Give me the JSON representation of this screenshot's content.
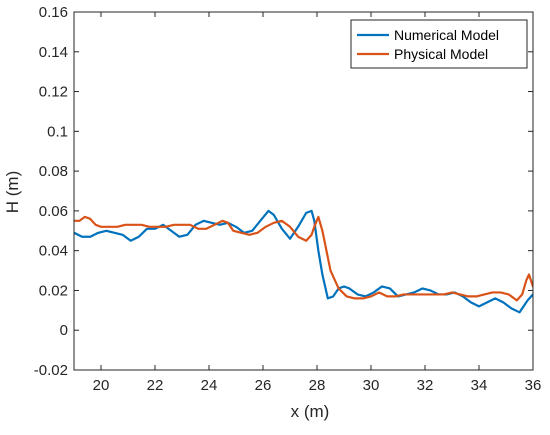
{
  "chart_data": {
    "type": "line",
    "title": "",
    "xlabel": "x (m)",
    "ylabel": "H (m)",
    "xlim": [
      19,
      36
    ],
    "ylim": [
      -0.02,
      0.16
    ],
    "xticks": [
      20,
      22,
      24,
      26,
      28,
      30,
      32,
      34,
      36
    ],
    "yticks": [
      -0.02,
      0,
      0.02,
      0.04,
      0.06,
      0.08,
      0.1,
      0.12,
      0.14,
      0.16
    ],
    "xtick_labels": [
      "20",
      "22",
      "24",
      "26",
      "28",
      "30",
      "32",
      "34",
      "36"
    ],
    "ytick_labels": [
      "-0.02",
      "0",
      "0.02",
      "0.04",
      "0.06",
      "0.08",
      "0.1",
      "0.12",
      "0.14",
      "0.16"
    ],
    "grid": false,
    "legend_position": "top-right",
    "series": [
      {
        "name": "Numerical Model",
        "color": "#0072BD",
        "x": [
          19.0,
          19.3,
          19.6,
          19.9,
          20.2,
          20.5,
          20.8,
          21.1,
          21.4,
          21.7,
          22.0,
          22.3,
          22.6,
          22.9,
          23.2,
          23.5,
          23.8,
          24.1,
          24.4,
          24.7,
          25.0,
          25.3,
          25.6,
          25.9,
          26.2,
          26.4,
          26.7,
          27.0,
          27.3,
          27.6,
          27.8,
          27.9,
          28.05,
          28.2,
          28.4,
          28.6,
          28.8,
          29.0,
          29.2,
          29.5,
          29.8,
          30.1,
          30.4,
          30.7,
          31.0,
          31.3,
          31.6,
          31.9,
          32.2,
          32.5,
          32.8,
          33.1,
          33.4,
          33.7,
          34.0,
          34.3,
          34.6,
          34.9,
          35.2,
          35.5,
          35.8,
          36.0
        ],
        "y": [
          0.049,
          0.047,
          0.047,
          0.049,
          0.05,
          0.049,
          0.048,
          0.045,
          0.047,
          0.051,
          0.051,
          0.053,
          0.05,
          0.047,
          0.048,
          0.053,
          0.055,
          0.054,
          0.053,
          0.054,
          0.052,
          0.049,
          0.05,
          0.055,
          0.06,
          0.058,
          0.051,
          0.046,
          0.052,
          0.059,
          0.06,
          0.055,
          0.04,
          0.028,
          0.016,
          0.017,
          0.021,
          0.022,
          0.021,
          0.018,
          0.017,
          0.019,
          0.022,
          0.021,
          0.017,
          0.018,
          0.019,
          0.021,
          0.02,
          0.018,
          0.018,
          0.019,
          0.017,
          0.014,
          0.012,
          0.014,
          0.016,
          0.014,
          0.011,
          0.009,
          0.015,
          0.018
        ]
      },
      {
        "name": "Physical Model",
        "color": "#D95319",
        "x": [
          19.0,
          19.2,
          19.4,
          19.6,
          19.8,
          20.0,
          20.3,
          20.6,
          20.9,
          21.2,
          21.5,
          21.8,
          22.1,
          22.4,
          22.7,
          23.0,
          23.3,
          23.6,
          23.9,
          24.2,
          24.5,
          24.7,
          24.9,
          25.2,
          25.5,
          25.8,
          26.1,
          26.4,
          26.7,
          27.0,
          27.3,
          27.6,
          27.8,
          27.9,
          28.05,
          28.2,
          28.5,
          28.8,
          29.1,
          29.4,
          29.7,
          30.0,
          30.3,
          30.6,
          30.9,
          31.2,
          31.5,
          31.8,
          32.1,
          32.4,
          32.7,
          33.0,
          33.3,
          33.6,
          33.9,
          34.2,
          34.5,
          34.8,
          35.1,
          35.4,
          35.6,
          35.75,
          35.85,
          36.0
        ],
        "y": [
          0.055,
          0.055,
          0.057,
          0.056,
          0.053,
          0.052,
          0.052,
          0.052,
          0.053,
          0.053,
          0.053,
          0.052,
          0.052,
          0.052,
          0.053,
          0.053,
          0.053,
          0.051,
          0.051,
          0.053,
          0.055,
          0.054,
          0.05,
          0.049,
          0.048,
          0.049,
          0.052,
          0.054,
          0.055,
          0.052,
          0.047,
          0.045,
          0.048,
          0.052,
          0.057,
          0.05,
          0.03,
          0.021,
          0.017,
          0.016,
          0.016,
          0.017,
          0.019,
          0.017,
          0.017,
          0.018,
          0.018,
          0.018,
          0.018,
          0.018,
          0.018,
          0.019,
          0.018,
          0.017,
          0.017,
          0.018,
          0.019,
          0.019,
          0.018,
          0.015,
          0.018,
          0.025,
          0.028,
          0.022
        ]
      }
    ]
  }
}
